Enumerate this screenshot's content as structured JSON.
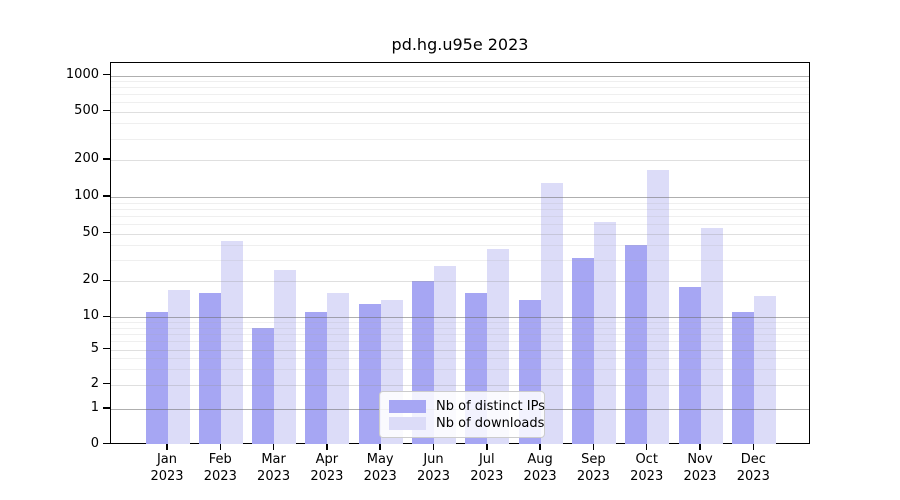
{
  "title": "pd.hg.u95e 2023",
  "chart_data": {
    "type": "bar",
    "title": "pd.hg.u95e 2023",
    "months": [
      "Jan",
      "Feb",
      "Mar",
      "Apr",
      "May",
      "Jun",
      "Jul",
      "Aug",
      "Sep",
      "Oct",
      "Nov",
      "Dec"
    ],
    "year_label": "2023",
    "categories": [
      "Jan 2023",
      "Feb 2023",
      "Mar 2023",
      "Apr 2023",
      "May 2023",
      "Jun 2023",
      "Jul 2023",
      "Aug 2023",
      "Sep 2023",
      "Oct 2023",
      "Nov 2023",
      "Dec 2023"
    ],
    "series": [
      {
        "name": "Nb of distinct IPs",
        "color": "#a6a6f3",
        "values": [
          11,
          16,
          8,
          11,
          13,
          20,
          16,
          14,
          31,
          40,
          18,
          11
        ]
      },
      {
        "name": "Nb of downloads",
        "color": "#dcdcf8",
        "values": [
          17,
          43,
          25,
          16,
          14,
          27,
          37,
          130,
          62,
          165,
          56,
          15
        ]
      }
    ],
    "yscale": "log-like (compressed below 10, 0 baseline shown)",
    "yticks": [
      0,
      1,
      2,
      5,
      10,
      20,
      50,
      100,
      200,
      500,
      1000
    ],
    "ytick_labels": [
      "0",
      "1",
      "2",
      "5",
      "10",
      "20",
      "50",
      "100",
      "200",
      "500",
      "1000"
    ],
    "ylim": [
      0,
      1200
    ],
    "grid": true,
    "legend_position": "lower center",
    "xlabel": "",
    "ylabel": ""
  }
}
